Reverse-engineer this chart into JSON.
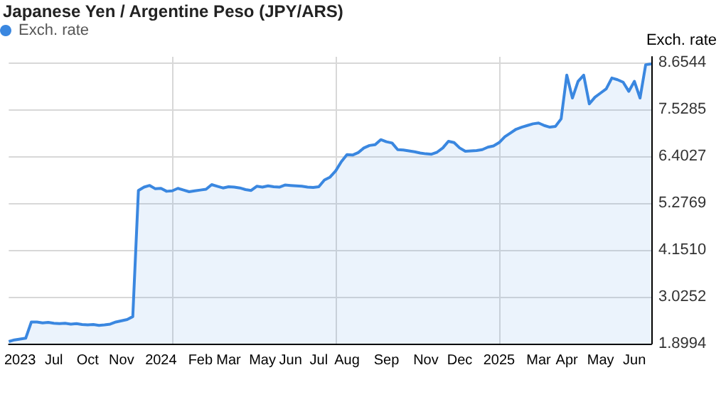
{
  "chart_data": {
    "type": "area",
    "title": "Japanese Yen / Argentine Peso (JPY/ARS)",
    "ylabel": "Exch. rate",
    "categories": [
      null,
      null,
      "2023",
      null,
      null,
      null,
      null,
      null,
      "Jul",
      null,
      null,
      null,
      null,
      null,
      "Oct",
      null,
      null,
      null,
      null,
      null,
      "Nov",
      null,
      null,
      null,
      null,
      null,
      null,
      "2024",
      null,
      null,
      null,
      null,
      null,
      null,
      "Feb",
      null,
      null,
      null,
      null,
      "Mar",
      null,
      null,
      null,
      null,
      null,
      "May",
      null,
      null,
      null,
      null,
      "Jun",
      null,
      null,
      null,
      null,
      "Jul",
      null,
      null,
      null,
      null,
      "Aug",
      null,
      null,
      null,
      null,
      null,
      null,
      "Sep",
      null,
      null,
      null,
      null,
      null,
      null,
      "Nov",
      null,
      null,
      null,
      null,
      null,
      "Dec",
      null,
      null,
      null,
      null,
      null,
      null,
      "2025",
      null,
      null,
      null,
      null,
      null,
      null,
      "Mar",
      null,
      null,
      null,
      null,
      "Apr",
      null,
      null,
      null,
      null,
      null,
      "May",
      null,
      null,
      null,
      null,
      null,
      "Jun",
      null,
      null,
      null
    ],
    "series": [
      {
        "name": "Exch. rate",
        "color": "#3a87e0",
        "values": [
          1.95,
          1.99,
          2.01,
          2.03,
          2.42,
          2.42,
          2.4,
          2.41,
          2.39,
          2.38,
          2.39,
          2.37,
          2.38,
          2.36,
          2.35,
          2.36,
          2.34,
          2.35,
          2.37,
          2.42,
          2.45,
          2.48,
          2.55,
          5.58,
          5.66,
          5.7,
          5.62,
          5.63,
          5.56,
          5.57,
          5.63,
          5.59,
          5.55,
          5.57,
          5.59,
          5.61,
          5.72,
          5.68,
          5.64,
          5.67,
          5.66,
          5.64,
          5.6,
          5.58,
          5.68,
          5.66,
          5.69,
          5.67,
          5.66,
          5.71,
          5.7,
          5.69,
          5.68,
          5.66,
          5.65,
          5.67,
          5.83,
          5.9,
          6.05,
          6.27,
          6.44,
          6.43,
          6.49,
          6.6,
          6.66,
          6.68,
          6.8,
          6.75,
          6.72,
          6.56,
          6.55,
          6.53,
          6.51,
          6.48,
          6.46,
          6.45,
          6.5,
          6.6,
          6.76,
          6.73,
          6.6,
          6.52,
          6.53,
          6.54,
          6.56,
          6.62,
          6.65,
          6.73,
          6.87,
          6.96,
          7.05,
          7.1,
          7.14,
          7.18,
          7.2,
          7.14,
          7.1,
          7.12,
          7.3,
          8.35,
          7.8,
          8.2,
          8.35,
          7.66,
          7.82,
          7.92,
          8.02,
          8.28,
          8.24,
          8.18,
          7.96,
          8.2,
          7.8,
          8.6,
          8.62
        ]
      }
    ],
    "ylim": [
      1.8994,
      8.79
    ],
    "yticks": [
      1.8994,
      3.0252,
      {
        "value": 4.151,
        "label": "4.1510"
      },
      5.2769,
      6.4027,
      7.5285,
      8.6544
    ],
    "grid": true,
    "legend": "top left",
    "marker": "none"
  }
}
